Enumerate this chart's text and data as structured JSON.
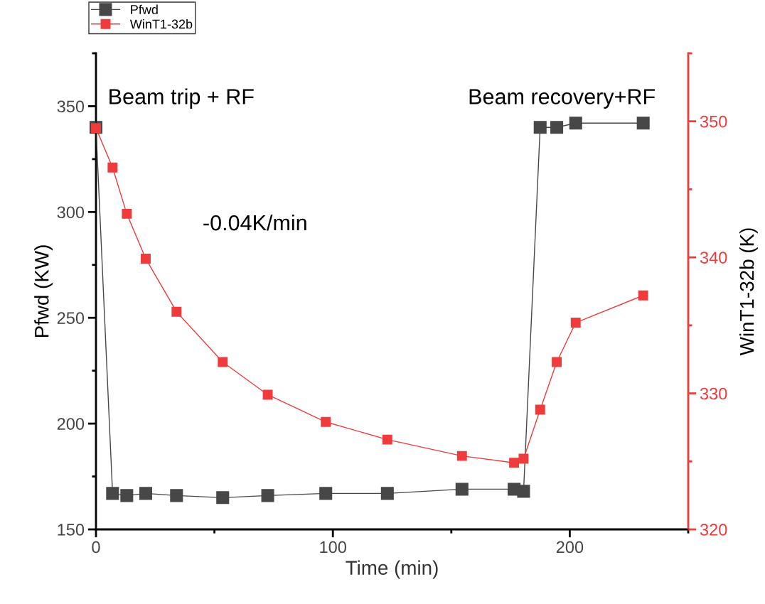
{
  "chart_data": {
    "type": "line",
    "xlabel": "Time (min)",
    "ylabel": "Pfwd (KW)",
    "y2label": "WinT1-32b (K)",
    "x": [
      0,
      7,
      13,
      21,
      34,
      53.5,
      72.5,
      97,
      123,
      154.5,
      176.5,
      180.5,
      187.5,
      194.5,
      202.5,
      231
    ],
    "series": [
      {
        "name": "Pfwd",
        "color": "#474747",
        "values": [
          340,
          167,
          166,
          167,
          166,
          165,
          166,
          167,
          167,
          169,
          169,
          168,
          340,
          340,
          342,
          342
        ]
      },
      {
        "name": "WinT1-32b",
        "color": "#ef3b3b",
        "axis": "y2",
        "values": [
          349.5,
          346.6,
          343.2,
          339.9,
          336.0,
          332.3,
          329.9,
          327.9,
          326.6,
          325.4,
          324.9,
          325.2,
          328.8,
          332.3,
          335.2,
          337.2
        ]
      }
    ],
    "xlim": [
      0,
      250
    ],
    "xticks": [
      0,
      100,
      200
    ],
    "ylim": [
      150,
      375
    ],
    "yticks": [
      150,
      200,
      250,
      300,
      350
    ],
    "y2lim": [
      320,
      355
    ],
    "y2ticks": [
      320,
      330,
      340,
      350
    ],
    "annotations": [
      "Beam trip + RF",
      "Beam recovery+RF",
      "-0.04K/min"
    ],
    "marker": "square",
    "line_style": "solid",
    "grid": false,
    "legend": "top left"
  }
}
